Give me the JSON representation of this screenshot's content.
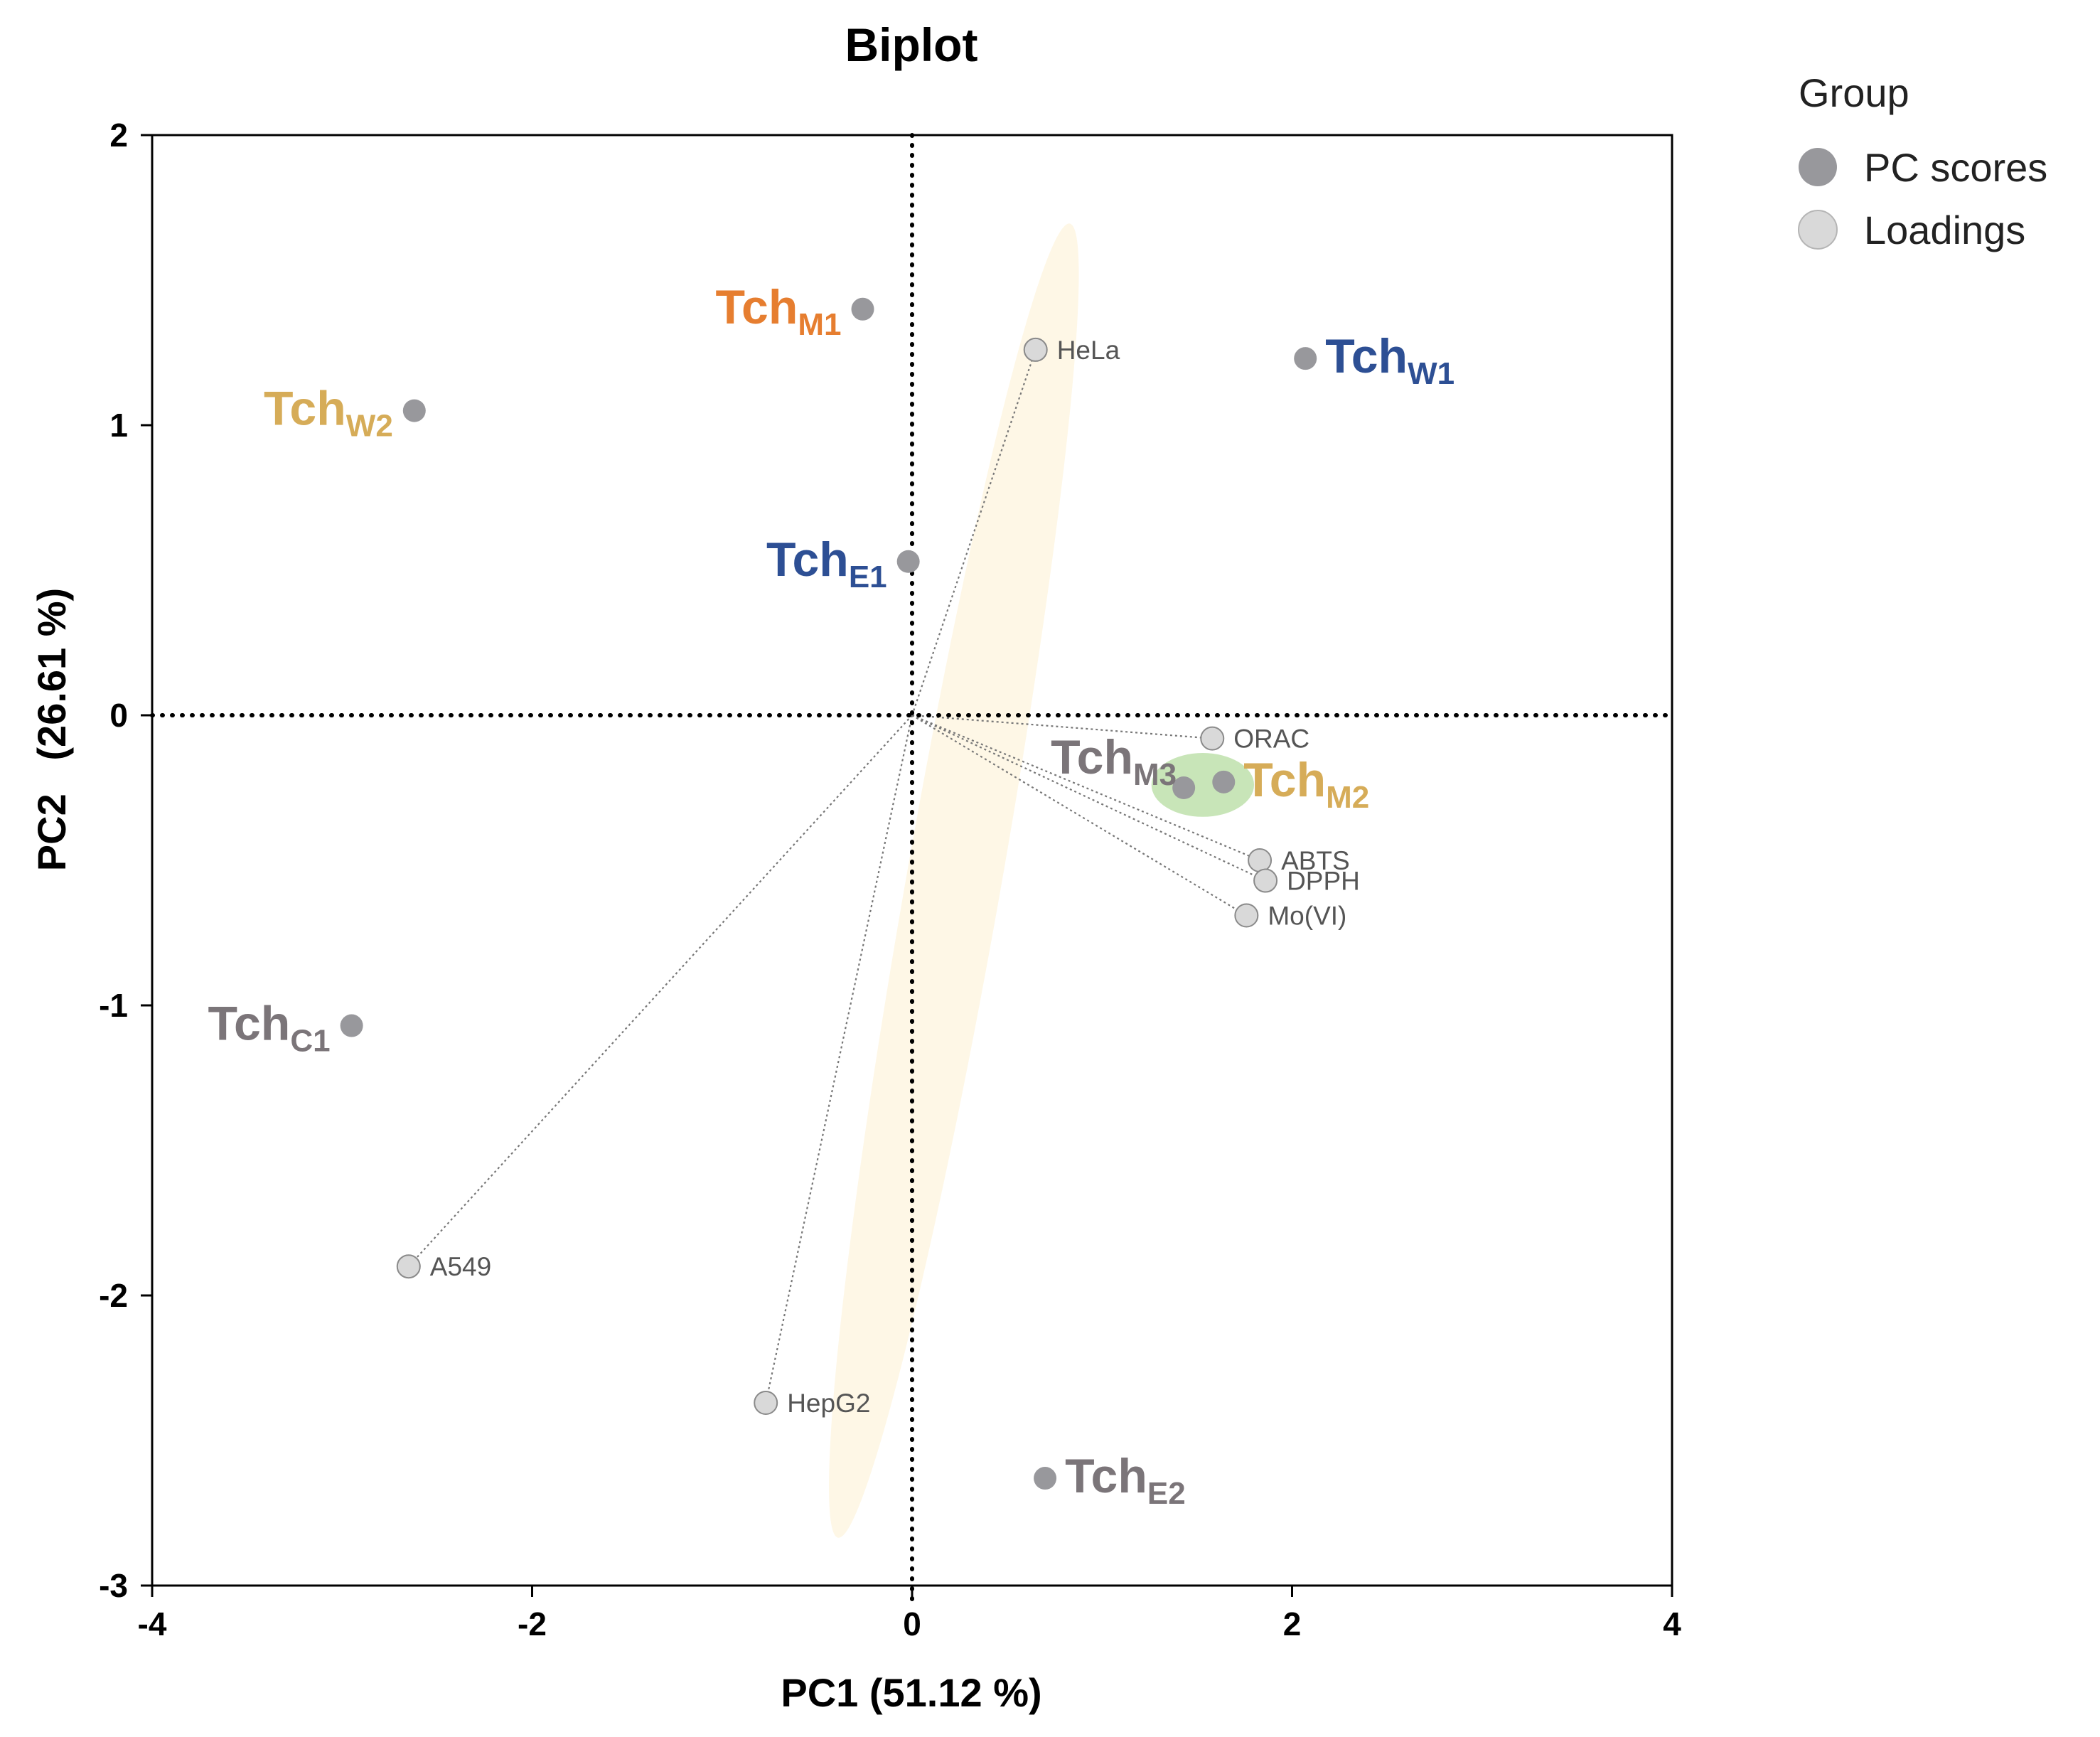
{
  "colors": {
    "score_point": "#98989c",
    "loading_point": "#d9d9d9",
    "loading_stroke": "#8a8a8a",
    "vector": "#777777",
    "ellipse_cream": "#fdf3dc",
    "ellipse_green": "#b6dca0",
    "orange": "#e67e30",
    "blue": "#2d4f94",
    "gold": "#d6ac58",
    "gray": "#7b7579"
  },
  "chart_data": {
    "type": "scatter",
    "title": "Biplot",
    "xlabel": "PC1 (51.12 %)",
    "ylabel": "PC2   (26.61 %)",
    "xlim": [
      -4,
      4
    ],
    "ylim": [
      -3,
      2
    ],
    "xticks": [
      "-4",
      "-2",
      "0",
      "2",
      "4"
    ],
    "yticks": [
      "-3",
      "-2",
      "-1",
      "0",
      "1",
      "2"
    ],
    "grid": false,
    "reference_lines": {
      "x": 0,
      "y": 0,
      "style": "dotted"
    },
    "legend": {
      "title": "Group",
      "position": "top-right",
      "entries": [
        {
          "label": "PC scores",
          "color_key": "score_point"
        },
        {
          "label": "Loadings",
          "color_key": "loading_point"
        }
      ]
    },
    "scores": [
      {
        "base": "Tch",
        "sub": "M1",
        "x": -0.26,
        "y": 1.4,
        "color_key": "orange",
        "label_side": "left"
      },
      {
        "base": "Tch",
        "sub": "W2",
        "x": -2.62,
        "y": 1.05,
        "color_key": "gold",
        "label_side": "left"
      },
      {
        "base": "Tch",
        "sub": "W1",
        "x": 2.07,
        "y": 1.23,
        "color_key": "blue",
        "label_side": "right"
      },
      {
        "base": "Tch",
        "sub": "E1",
        "x": -0.02,
        "y": 0.53,
        "color_key": "blue",
        "label_side": "left"
      },
      {
        "base": "Tch",
        "sub": "M3",
        "x": 1.43,
        "y": -0.25,
        "color_key": "gray",
        "label_side": "above-left"
      },
      {
        "base": "Tch",
        "sub": "M2",
        "x": 1.64,
        "y": -0.23,
        "color_key": "gold",
        "label_side": "right"
      },
      {
        "base": "Tch",
        "sub": "C1",
        "x": -2.95,
        "y": -1.07,
        "color_key": "gray",
        "label_side": "left"
      },
      {
        "base": "Tch",
        "sub": "E2",
        "x": 0.7,
        "y": -2.63,
        "color_key": "gray",
        "label_side": "right"
      }
    ],
    "loadings": [
      {
        "label": "HeLa",
        "x": 0.65,
        "y": 1.26
      },
      {
        "label": "ORAC",
        "x": 1.58,
        "y": -0.08
      },
      {
        "label": "ABTS",
        "x": 1.83,
        "y": -0.5
      },
      {
        "label": "DPPH",
        "x": 1.86,
        "y": -0.57
      },
      {
        "label": "Mo(VI)",
        "x": 1.76,
        "y": -0.69
      },
      {
        "label": "A549",
        "x": -2.65,
        "y": -1.9
      },
      {
        "label": "HepG2",
        "x": -0.77,
        "y": -2.37
      }
    ],
    "ellipses": [
      {
        "name": "cream-group",
        "cx": 0.22,
        "cy": -0.57,
        "rx": 2.3,
        "ry": 0.25,
        "angle_deg": 80,
        "color_key": "ellipse_cream"
      },
      {
        "name": "green-group",
        "cx": 1.53,
        "cy": -0.24,
        "rx": 0.27,
        "ry": 0.11,
        "angle_deg": 0,
        "color_key": "ellipse_green"
      }
    ]
  }
}
